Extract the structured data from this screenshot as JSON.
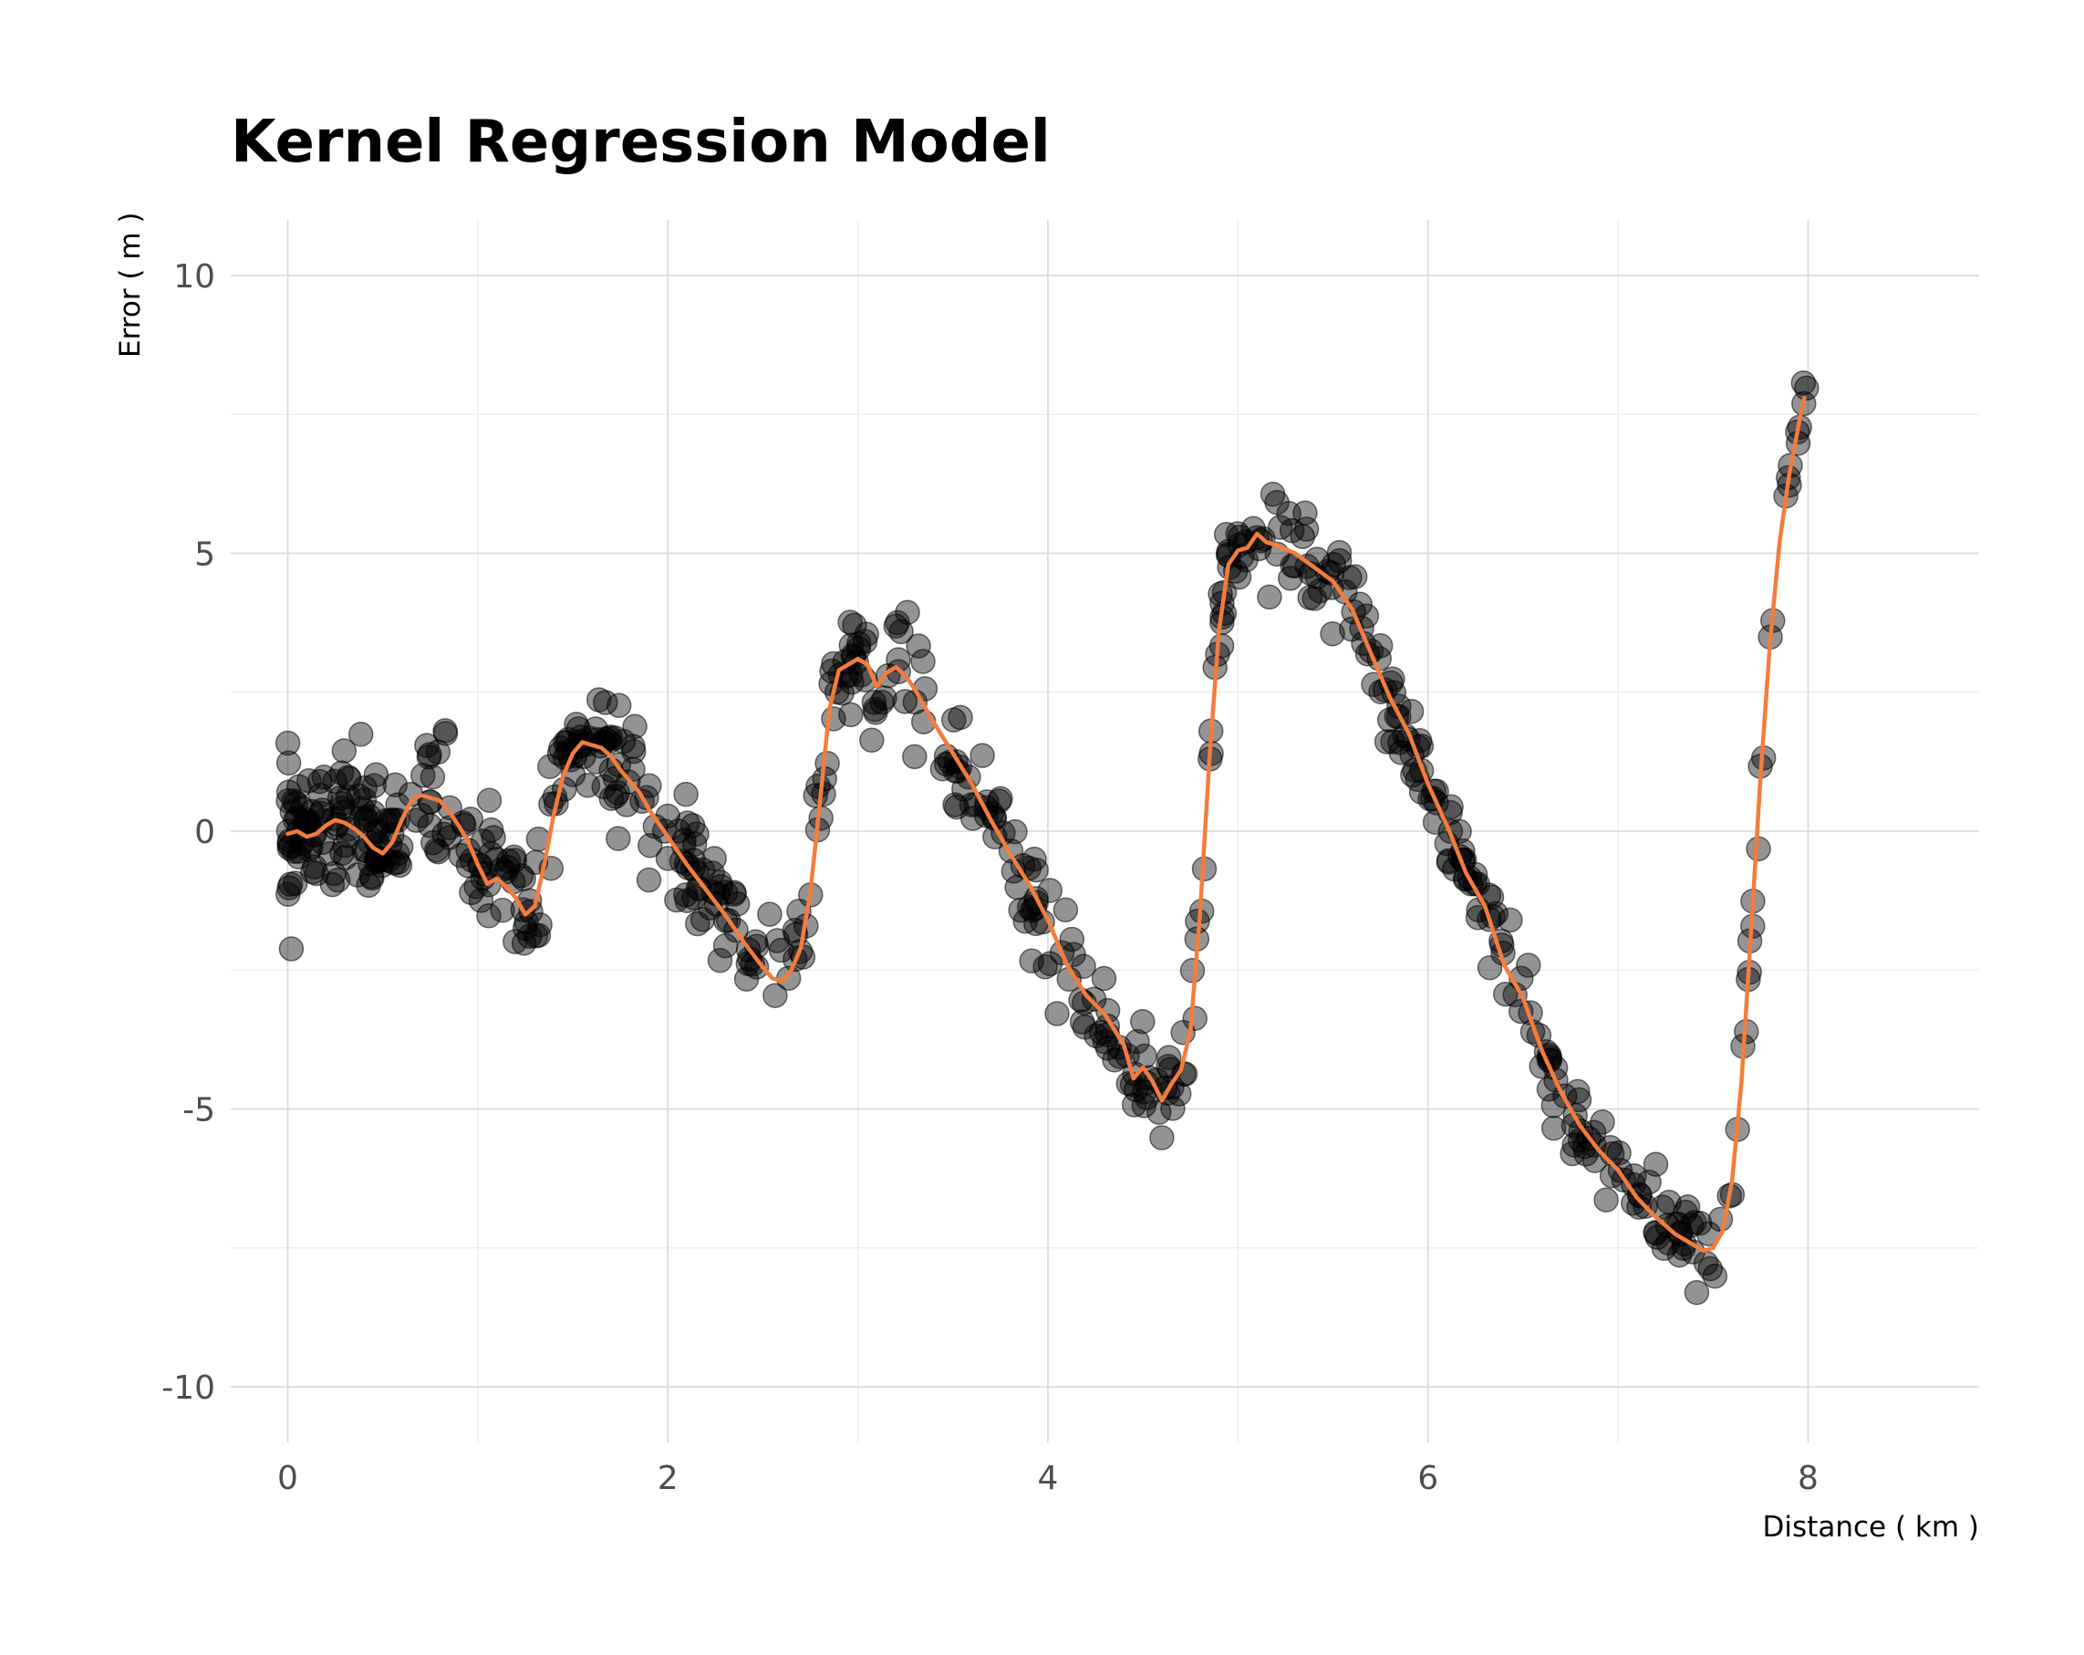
{
  "chart_data": {
    "type": "scatter",
    "title": "Kernel Regression Model",
    "xlabel": "Distance ( km )",
    "ylabel": "Error ( m )",
    "xlim": [
      -0.3,
      8.9
    ],
    "ylim": [
      -11,
      11
    ],
    "x_ticks": [
      0,
      2,
      4,
      6,
      8
    ],
    "x_tick_labels": [
      "0",
      "2",
      "4",
      "6",
      "8"
    ],
    "y_ticks": [
      -10,
      -5,
      0,
      5,
      10
    ],
    "y_tick_labels": [
      "-10",
      "-5",
      "0",
      "5",
      "10"
    ],
    "grid": true,
    "legend": "none",
    "colors": {
      "points": "#000000",
      "fit_line": "#f47c3c"
    },
    "series": [
      {
        "kind": "points",
        "x_range": [
          0,
          8
        ],
        "count": 700,
        "noise_sd_at_start": 0.6,
        "noise_sd_at_end": 0.3
      },
      {
        "kind": "line",
        "x": [
          0.0,
          0.05,
          0.1,
          0.15,
          0.2,
          0.25,
          0.3,
          0.35,
          0.4,
          0.45,
          0.5,
          0.55,
          0.6,
          0.65,
          0.7,
          0.75,
          0.8,
          0.85,
          0.9,
          0.95,
          1.0,
          1.05,
          1.1,
          1.15,
          1.2,
          1.25,
          1.3,
          1.35,
          1.4,
          1.45,
          1.5,
          1.55,
          1.6,
          1.65,
          1.7,
          1.75,
          1.8,
          1.85,
          1.9,
          1.95,
          2.0,
          2.1,
          2.2,
          2.3,
          2.4,
          2.5,
          2.55,
          2.6,
          2.65,
          2.7,
          2.75,
          2.8,
          2.85,
          2.9,
          2.95,
          3.0,
          3.05,
          3.1,
          3.15,
          3.2,
          3.25,
          3.3,
          3.4,
          3.5,
          3.6,
          3.7,
          3.8,
          3.9,
          4.0,
          4.1,
          4.2,
          4.3,
          4.4,
          4.45,
          4.5,
          4.55,
          4.6,
          4.65,
          4.7,
          4.75,
          4.8,
          4.85,
          4.9,
          4.95,
          5.0,
          5.05,
          5.1,
          5.15,
          5.2,
          5.3,
          5.4,
          5.5,
          5.6,
          5.7,
          5.8,
          5.9,
          6.0,
          6.1,
          6.2,
          6.3,
          6.4,
          6.5,
          6.6,
          6.7,
          6.8,
          6.9,
          7.0,
          7.1,
          7.2,
          7.3,
          7.35,
          7.4,
          7.45,
          7.5,
          7.55,
          7.6,
          7.65,
          7.7,
          7.75,
          7.8,
          7.85,
          7.9,
          7.95,
          7.98
        ],
        "y": [
          -0.05,
          -0.0,
          -0.1,
          -0.05,
          0.1,
          0.2,
          0.15,
          0.05,
          -0.1,
          -0.3,
          -0.4,
          -0.2,
          0.2,
          0.55,
          0.65,
          0.6,
          0.55,
          0.35,
          0.1,
          -0.2,
          -0.6,
          -0.95,
          -0.85,
          -1.0,
          -1.2,
          -1.5,
          -1.35,
          -0.6,
          0.3,
          1.0,
          1.4,
          1.6,
          1.55,
          1.5,
          1.35,
          1.1,
          0.9,
          0.7,
          0.4,
          0.15,
          -0.1,
          -0.6,
          -1.05,
          -1.5,
          -2.0,
          -2.45,
          -2.65,
          -2.7,
          -2.5,
          -2.1,
          -1.1,
          0.5,
          2.2,
          2.9,
          3.0,
          3.1,
          3.0,
          2.6,
          2.85,
          2.95,
          2.8,
          2.55,
          1.95,
          1.4,
          0.85,
          0.2,
          -0.4,
          -0.95,
          -1.6,
          -2.4,
          -2.95,
          -3.3,
          -3.85,
          -4.45,
          -4.25,
          -4.5,
          -4.85,
          -4.55,
          -4.3,
          -3.6,
          -1.5,
          1.3,
          3.6,
          4.8,
          5.05,
          5.1,
          5.35,
          5.2,
          5.15,
          5.0,
          4.75,
          4.5,
          4.0,
          3.2,
          2.4,
          1.75,
          0.85,
          0.1,
          -0.75,
          -1.35,
          -2.4,
          -3.0,
          -3.95,
          -4.7,
          -5.3,
          -5.75,
          -6.1,
          -6.6,
          -6.95,
          -7.25,
          -7.35,
          -7.45,
          -7.55,
          -7.5,
          -7.2,
          -6.3,
          -4.5,
          -1.8,
          1.0,
          3.4,
          5.2,
          6.4,
          7.3,
          7.8
        ],
        "name": ""
      }
    ]
  }
}
